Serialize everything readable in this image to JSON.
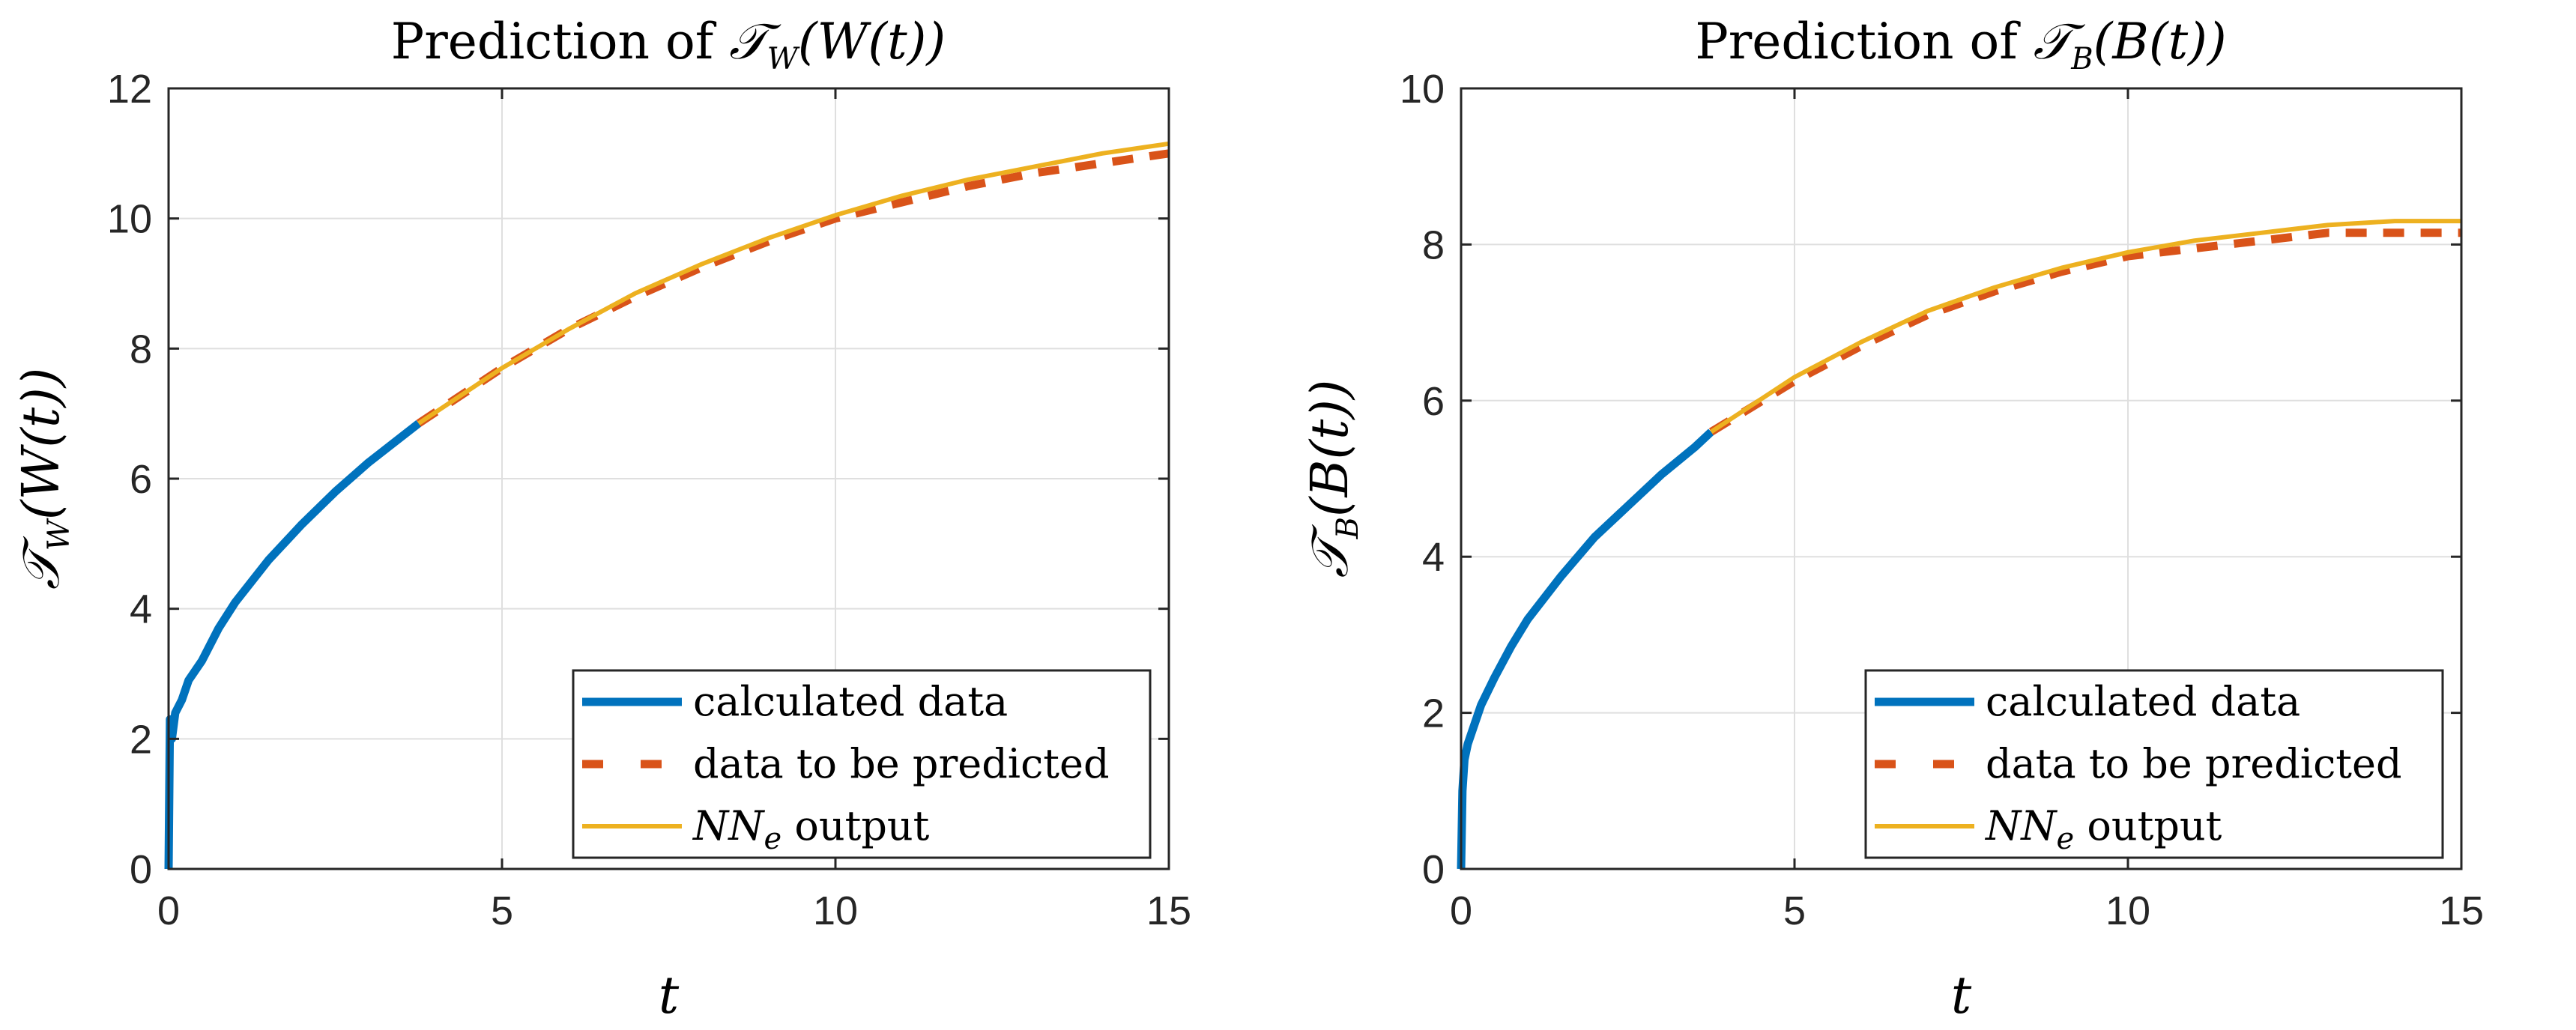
{
  "chart_data": [
    {
      "type": "line",
      "title_prefix": "Prediction of ",
      "title_math": "𝒯",
      "title_sub": "W",
      "title_arg": "(W(t))",
      "ylabel_math": "𝒯",
      "ylabel_sub": "W",
      "ylabel_arg": "(W(t))",
      "xlabel": "t",
      "xlim": [
        0,
        15
      ],
      "ylim": [
        0,
        12
      ],
      "xticks": [
        0,
        5,
        10,
        15
      ],
      "yticks": [
        0,
        2,
        4,
        6,
        8,
        10,
        12
      ],
      "xtick_labels": [
        "0",
        "5",
        "10",
        "15"
      ],
      "ytick_labels": [
        "0",
        "2",
        "4",
        "6",
        "8",
        "10",
        "12"
      ],
      "grid": true,
      "legend_position": "bottom-right",
      "series": [
        {
          "name": "calculated data",
          "style": "solid-thick",
          "x": [
            0,
            0.02,
            0.05,
            0.1,
            0.2,
            0.3,
            0.5,
            0.75,
            1.0,
            1.5,
            2.0,
            2.5,
            3.0,
            3.5,
            3.75
          ],
          "y": [
            0,
            2.3,
            2.0,
            2.4,
            2.6,
            2.9,
            3.2,
            3.7,
            4.1,
            4.75,
            5.3,
            5.8,
            6.25,
            6.65,
            6.85
          ]
        },
        {
          "name": "data to be predicted",
          "style": "dashed",
          "x": [
            3.75,
            5,
            6,
            7,
            8,
            9,
            10,
            11,
            12,
            13,
            14,
            15
          ],
          "y": [
            6.85,
            7.7,
            8.3,
            8.8,
            9.25,
            9.65,
            10.0,
            10.25,
            10.5,
            10.7,
            10.85,
            11.0
          ]
        },
        {
          "name_math": "NN",
          "name_sub": "e",
          "name_rest": " output",
          "style": "solid-thin",
          "x": [
            3.75,
            5,
            6,
            7,
            8,
            9,
            10,
            11,
            12,
            13,
            14,
            15
          ],
          "y": [
            6.85,
            7.7,
            8.3,
            8.85,
            9.3,
            9.7,
            10.05,
            10.35,
            10.6,
            10.8,
            11.0,
            11.15
          ]
        }
      ]
    },
    {
      "type": "line",
      "title_prefix": "Prediction of ",
      "title_math": "𝒯",
      "title_sub": "B",
      "title_arg": "(B(t))",
      "ylabel_math": "𝒯",
      "ylabel_sub": "B",
      "ylabel_arg": "(B(t))",
      "xlabel": "t",
      "xlim": [
        0,
        15
      ],
      "ylim": [
        0,
        10
      ],
      "xticks": [
        0,
        5,
        10,
        15
      ],
      "yticks": [
        0,
        2,
        4,
        6,
        8,
        10
      ],
      "xtick_labels": [
        "0",
        "5",
        "10",
        "15"
      ],
      "ytick_labels": [
        "0",
        "2",
        "4",
        "6",
        "8",
        "10"
      ],
      "grid": true,
      "legend_position": "bottom-right",
      "series": [
        {
          "name": "calculated data",
          "style": "solid-thick",
          "x": [
            0,
            0.02,
            0.05,
            0.1,
            0.2,
            0.3,
            0.5,
            0.75,
            1.0,
            1.5,
            2.0,
            2.5,
            3.0,
            3.5,
            3.75
          ],
          "y": [
            0,
            1.0,
            1.4,
            1.6,
            1.85,
            2.1,
            2.45,
            2.85,
            3.2,
            3.75,
            4.25,
            4.65,
            5.05,
            5.4,
            5.6
          ],
          "_": ""
        },
        {
          "name": "data to be predicted",
          "style": "dashed",
          "x": [
            3.75,
            5,
            6,
            7,
            8,
            9,
            10,
            11,
            12,
            13,
            14,
            15
          ],
          "y": [
            5.6,
            6.25,
            6.7,
            7.1,
            7.4,
            7.65,
            7.85,
            7.95,
            8.05,
            8.15,
            8.15,
            8.15
          ]
        },
        {
          "name_math": "NN",
          "name_sub": "e",
          "name_rest": " output",
          "style": "solid-thin",
          "x": [
            3.75,
            5,
            6,
            7,
            8,
            9,
            10,
            11,
            12,
            13,
            14,
            15
          ],
          "y": [
            5.6,
            6.3,
            6.75,
            7.15,
            7.45,
            7.7,
            7.9,
            8.05,
            8.15,
            8.25,
            8.3,
            8.3
          ]
        }
      ]
    }
  ],
  "colors": {
    "calculated": "#0072BD",
    "predicted": "#D95319",
    "nn_output": "#EDB120",
    "grid": "#DFDFDF",
    "axes": "#262626"
  }
}
